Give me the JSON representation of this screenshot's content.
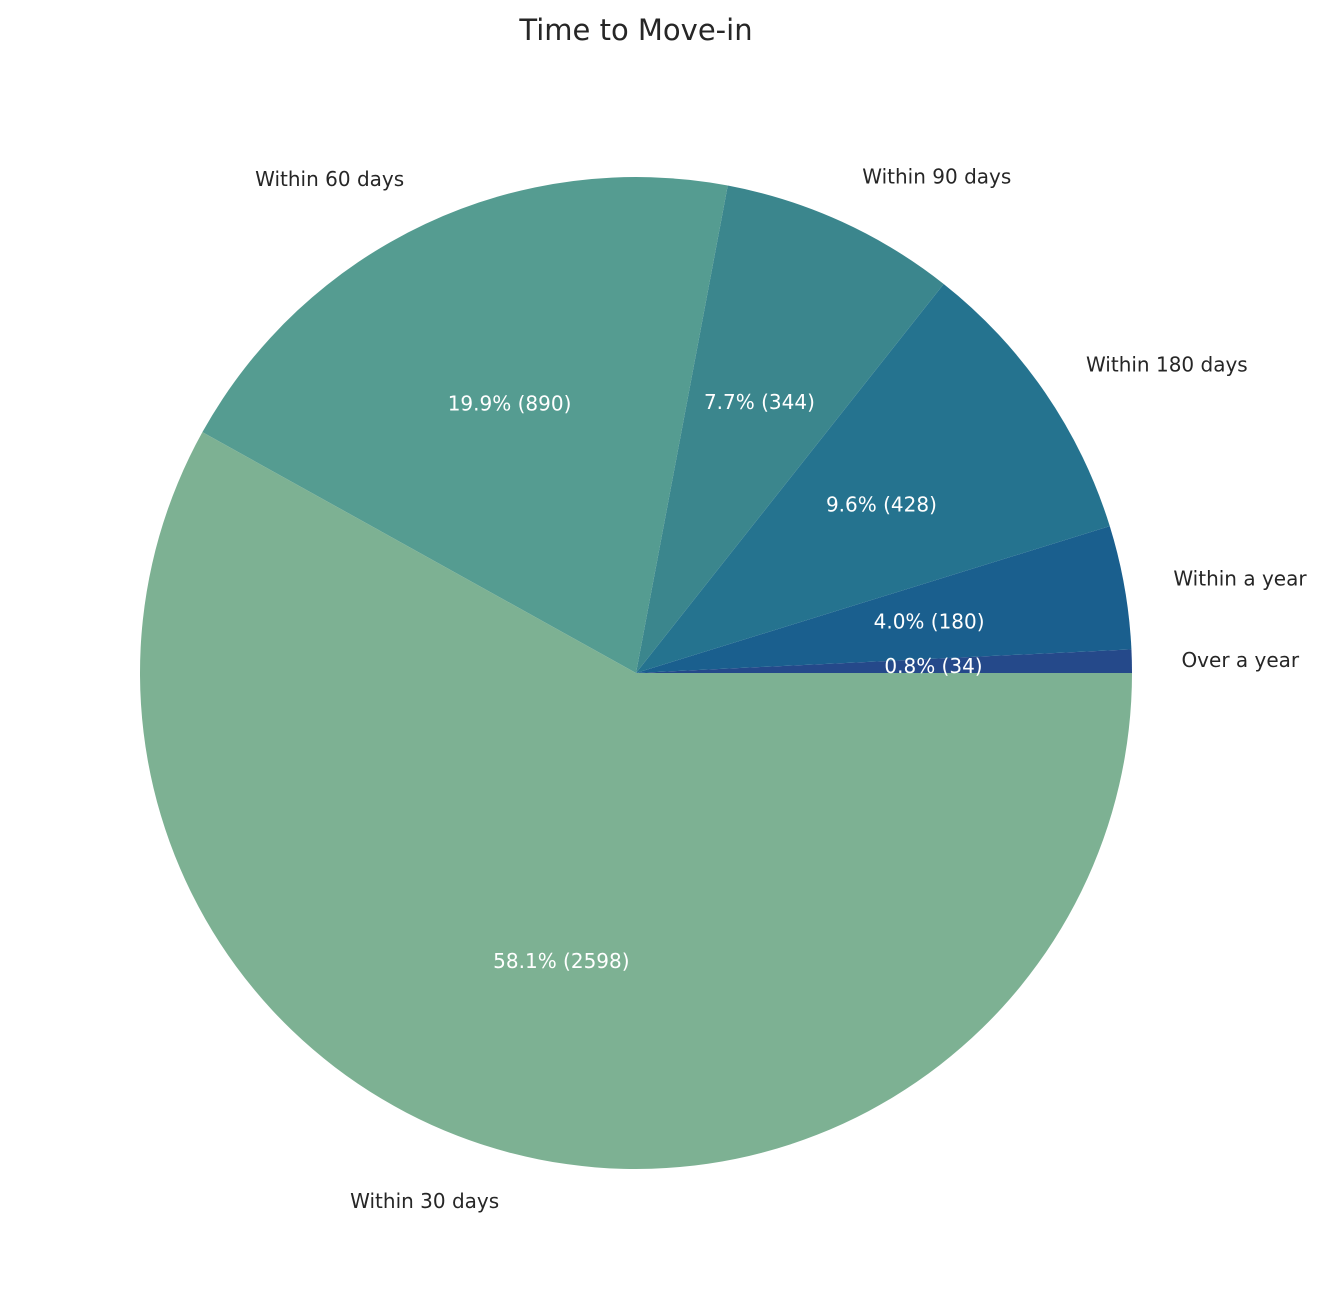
{
  "chart_data": {
    "type": "pie",
    "title": "Time to Move-in",
    "start_angle_deg": 0,
    "direction": "counterclockwise",
    "slices": [
      {
        "label": "Over a year",
        "value": 34,
        "pct_label": "0.8% (34)",
        "color": "#25498a"
      },
      {
        "label": "Within a year",
        "value": 180,
        "pct_label": "4.0% (180)",
        "color": "#1a5f8e"
      },
      {
        "label": "Within 180 days",
        "value": 428,
        "pct_label": "9.6% (428)",
        "color": "#25738f"
      },
      {
        "label": "Within 90 days",
        "value": 344,
        "pct_label": "7.7% (344)",
        "color": "#3b868d"
      },
      {
        "label": "Within 60 days",
        "value": 890,
        "pct_label": "19.9% (890)",
        "color": "#559c91"
      },
      {
        "label": "Within 30 days",
        "value": 2598,
        "pct_label": "58.1% (2598)",
        "color": "#7db193"
      }
    ]
  }
}
